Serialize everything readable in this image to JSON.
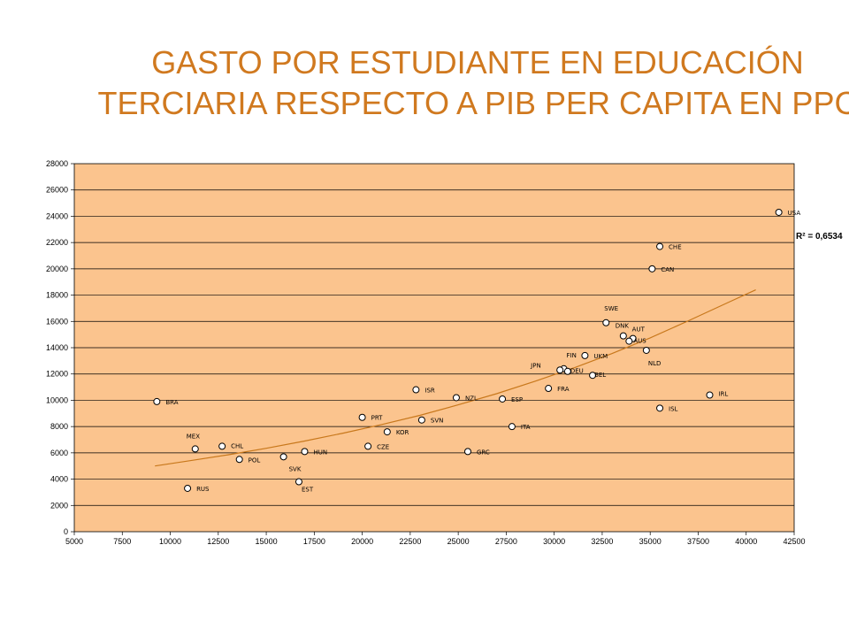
{
  "chart_data": {
    "type": "scatter",
    "title_line1": "GASTO POR ESTUDIANTE EN EDUCACIÓN",
    "title_line2": "TERCIARIA RESPECTO A PIB PER CAPITA EN PPC",
    "xlabel": "",
    "ylabel": "",
    "xlim": [
      5000,
      42500
    ],
    "ylim": [
      0,
      28000
    ],
    "x_ticks": [
      5000,
      7500,
      10000,
      12500,
      15000,
      17500,
      20000,
      22500,
      25000,
      27500,
      30000,
      32500,
      35000,
      37500,
      40000,
      42500
    ],
    "y_ticks": [
      0,
      2000,
      4000,
      6000,
      8000,
      10000,
      12000,
      14000,
      16000,
      18000,
      20000,
      22000,
      24000,
      26000,
      28000
    ],
    "grid": "horizontal",
    "background": "#fbc48e",
    "trend_color": "#c8781c",
    "r_squared_label": "R² = 0,6534",
    "trendline": [
      [
        9200,
        5000
      ],
      [
        11000,
        5400
      ],
      [
        13000,
        5850
      ],
      [
        15000,
        6350
      ],
      [
        17000,
        6900
      ],
      [
        19000,
        7500
      ],
      [
        21000,
        8150
      ],
      [
        23000,
        8850
      ],
      [
        25000,
        9650
      ],
      [
        27000,
        10500
      ],
      [
        29000,
        11450
      ],
      [
        31000,
        12450
      ],
      [
        33000,
        13550
      ],
      [
        35000,
        14750
      ],
      [
        37000,
        16050
      ],
      [
        39000,
        17400
      ],
      [
        40500,
        18400
      ]
    ],
    "points": [
      {
        "label": "USA",
        "x": 41700,
        "y": 24300
      },
      {
        "label": "CHE",
        "x": 35500,
        "y": 21700
      },
      {
        "label": "CAN",
        "x": 35100,
        "y": 20000
      },
      {
        "label": "SWE",
        "x": 32700,
        "y": 15900
      },
      {
        "label": "DNK",
        "x": 33600,
        "y": 14900
      },
      {
        "label": "AUT",
        "x": 34100,
        "y": 14700
      },
      {
        "label": "AUS",
        "x": 33900,
        "y": 14500
      },
      {
        "label": "NLD",
        "x": 34800,
        "y": 13800
      },
      {
        "label": "UKM",
        "x": 31600,
        "y": 13400
      },
      {
        "label": "FIN",
        "x": 30500,
        "y": 12400
      },
      {
        "label": "JPN",
        "x": 30300,
        "y": 12300
      },
      {
        "label": "DEU",
        "x": 30700,
        "y": 12200
      },
      {
        "label": "BEL",
        "x": 32000,
        "y": 11900
      },
      {
        "label": "FRA",
        "x": 29700,
        "y": 10900
      },
      {
        "label": "IRL",
        "x": 38100,
        "y": 10400
      },
      {
        "label": "ISL",
        "x": 35500,
        "y": 9400
      },
      {
        "label": "ISR",
        "x": 22800,
        "y": 10800
      },
      {
        "label": "NZL",
        "x": 24900,
        "y": 10200
      },
      {
        "label": "ESP",
        "x": 27300,
        "y": 10100
      },
      {
        "label": "BRA",
        "x": 9300,
        "y": 9900
      },
      {
        "label": "PRT",
        "x": 20000,
        "y": 8700
      },
      {
        "label": "SVN",
        "x": 23100,
        "y": 8500
      },
      {
        "label": "ITA",
        "x": 27800,
        "y": 8000
      },
      {
        "label": "KOR",
        "x": 21300,
        "y": 7600
      },
      {
        "label": "CZE",
        "x": 20300,
        "y": 6500
      },
      {
        "label": "GRC",
        "x": 25500,
        "y": 6100
      },
      {
        "label": "MEX",
        "x": 11300,
        "y": 6300
      },
      {
        "label": "CHL",
        "x": 12700,
        "y": 6500
      },
      {
        "label": "HUN",
        "x": 17000,
        "y": 6100
      },
      {
        "label": "SVK",
        "x": 15900,
        "y": 5700
      },
      {
        "label": "POL",
        "x": 13600,
        "y": 5500
      },
      {
        "label": "EST",
        "x": 16700,
        "y": 3800
      },
      {
        "label": "RUS",
        "x": 10900,
        "y": 3300
      }
    ]
  }
}
